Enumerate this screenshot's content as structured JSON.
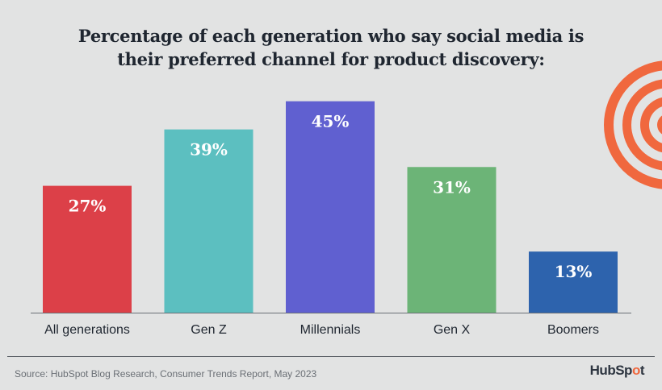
{
  "chart_data": {
    "type": "bar",
    "title": "Percentage of each generation who say social media is their preferred channel for product discovery:",
    "title_lines": [
      "Percentage of each generation who say social media is",
      "their preferred channel for product discovery:"
    ],
    "categories": [
      "All generations",
      "Gen Z",
      "Millennials",
      "Gen X",
      "Boomers"
    ],
    "values": [
      27,
      39,
      45,
      31,
      13
    ],
    "data_labels": [
      "27%",
      "39%",
      "45%",
      "31%",
      "13%"
    ],
    "colors": [
      "#dc4048",
      "#5cbfc0",
      "#6060d0",
      "#6cb477",
      "#2d63ad"
    ],
    "unit": "%",
    "ylim": [
      0,
      50
    ],
    "grid": false,
    "legend": "none"
  },
  "footer": {
    "source": "Source: HubSpot Blog Research, Consumer Trends Report, May 2023",
    "logo_text": "HubSpot"
  },
  "decoration": {
    "rings_color": "#f0683e"
  }
}
